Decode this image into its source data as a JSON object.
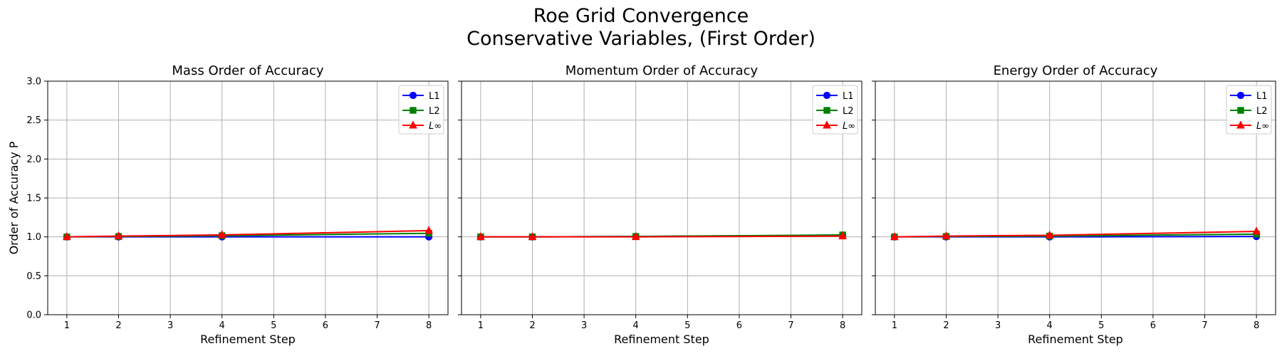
{
  "figure": {
    "title_line1": "Roe Grid Convergence",
    "title_line2": "Conservative Variables, (First Order)"
  },
  "colors": {
    "L1": "#0000ff",
    "L2": "#008000",
    "Linf": "#ff0000",
    "grid": "#b0b0b0"
  },
  "chart_data": [
    {
      "type": "line",
      "title": "Mass Order of Accuracy",
      "xlabel": "Refinement Step",
      "ylabel": "Order of Accuracy P",
      "x": [
        1,
        2,
        4,
        8
      ],
      "xticks": [
        1,
        2,
        3,
        4,
        5,
        6,
        7,
        8
      ],
      "yticks": [
        "0.0",
        "0.5",
        "1.0",
        "1.5",
        "2.0",
        "2.5",
        "3.0"
      ],
      "xlim": [
        0.63,
        8.37
      ],
      "ylim": [
        0,
        3
      ],
      "grid": true,
      "legend_position": "top-right",
      "series": [
        {
          "name": "L1",
          "marker": "circle",
          "color": "#0000ff",
          "values": [
            1.0,
            1.0,
            1.0,
            1.0
          ]
        },
        {
          "name": "L2",
          "marker": "square",
          "color": "#008000",
          "values": [
            1.0,
            1.005,
            1.015,
            1.045
          ]
        },
        {
          "name": "L∞",
          "marker": "triangle",
          "color": "#ff0000",
          "values": [
            1.0,
            1.01,
            1.025,
            1.08
          ]
        }
      ]
    },
    {
      "type": "line",
      "title": "Momentum Order of Accuracy",
      "xlabel": "Refinement Step",
      "ylabel": "",
      "x": [
        1,
        2,
        4,
        8
      ],
      "xticks": [
        1,
        2,
        3,
        4,
        5,
        6,
        7,
        8
      ],
      "yticks": [],
      "xlim": [
        0.63,
        8.37
      ],
      "ylim": [
        0,
        3
      ],
      "grid": true,
      "legend_position": "top-right",
      "series": [
        {
          "name": "L1",
          "marker": "circle",
          "color": "#0000ff",
          "values": [
            1.0,
            1.0,
            1.005,
            1.02
          ]
        },
        {
          "name": "L2",
          "marker": "square",
          "color": "#008000",
          "values": [
            1.0,
            1.0,
            1.005,
            1.025
          ]
        },
        {
          "name": "L∞",
          "marker": "triangle",
          "color": "#ff0000",
          "values": [
            1.0,
            1.0,
            1.0,
            1.01
          ]
        }
      ]
    },
    {
      "type": "line",
      "title": "Energy Order of Accuracy",
      "xlabel": "Refinement Step",
      "ylabel": "",
      "x": [
        1,
        2,
        4,
        8
      ],
      "xticks": [
        1,
        2,
        3,
        4,
        5,
        6,
        7,
        8
      ],
      "yticks": [],
      "xlim": [
        0.63,
        8.37
      ],
      "ylim": [
        0,
        3
      ],
      "grid": true,
      "legend_position": "top-right",
      "series": [
        {
          "name": "L1",
          "marker": "circle",
          "color": "#0000ff",
          "values": [
            1.0,
            1.0,
            1.0,
            1.005
          ]
        },
        {
          "name": "L2",
          "marker": "square",
          "color": "#008000",
          "values": [
            1.0,
            1.005,
            1.01,
            1.035
          ]
        },
        {
          "name": "L∞",
          "marker": "triangle",
          "color": "#ff0000",
          "values": [
            1.0,
            1.01,
            1.02,
            1.07
          ]
        }
      ]
    }
  ]
}
